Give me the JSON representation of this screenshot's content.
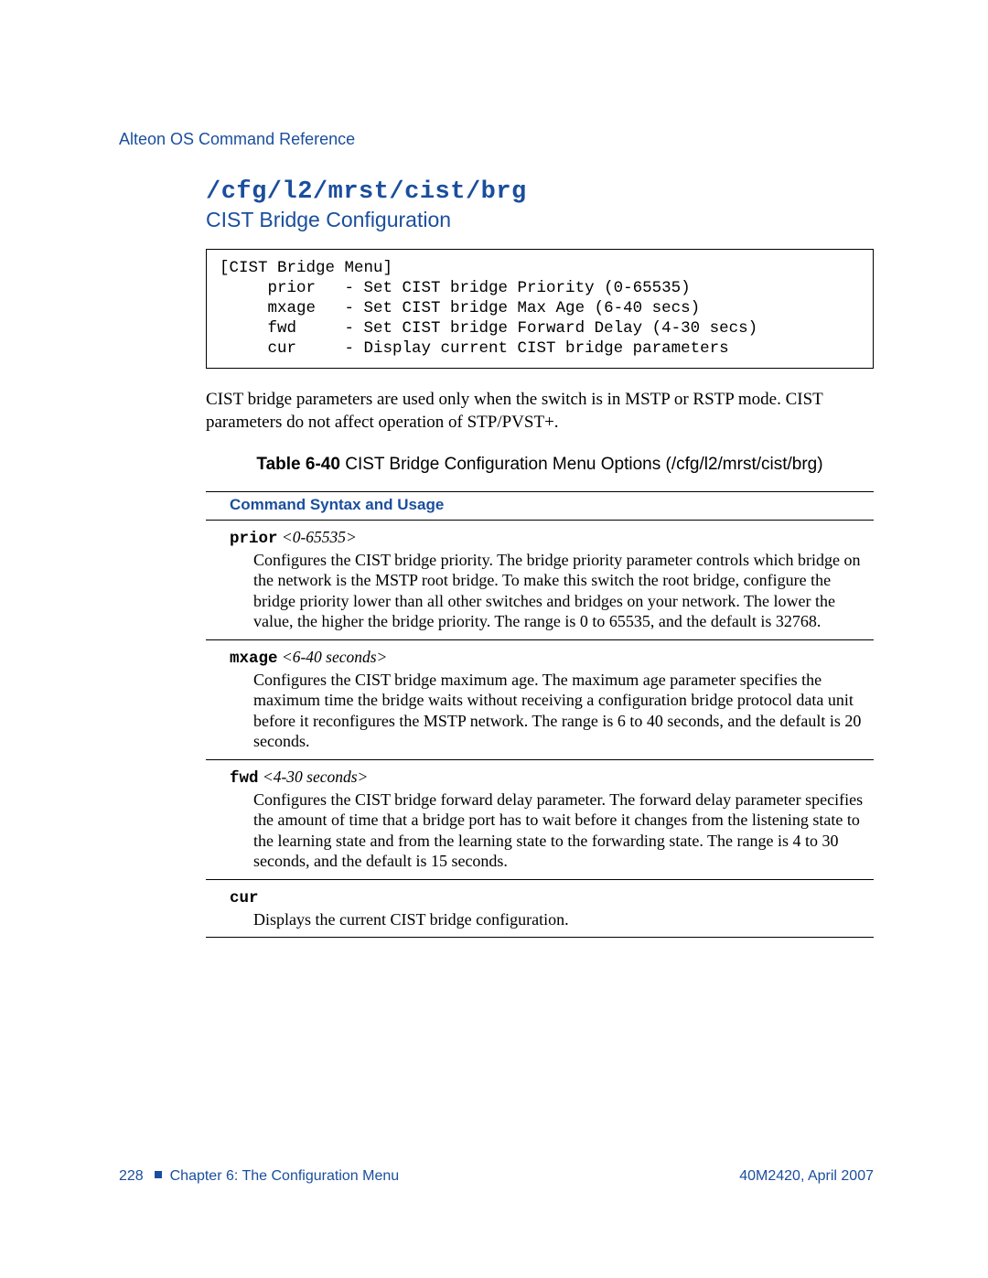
{
  "header": {
    "running_head": "Alteon OS Command Reference"
  },
  "title": {
    "path": "/cfg/l2/mrst/cist/brg",
    "subtitle": "CIST Bridge Configuration"
  },
  "menu_box": "[CIST Bridge Menu]\n     prior   - Set CIST bridge Priority (0-65535)\n     mxage   - Set CIST bridge Max Age (6-40 secs)\n     fwd     - Set CIST bridge Forward Delay (4-30 secs)\n     cur     - Display current CIST bridge parameters",
  "body_para": "CIST bridge parameters are used only when the switch is in MSTP or RSTP mode. CIST parameters do not affect operation of STP/PVST+.",
  "table": {
    "label": "Table 6-40",
    "title": "  CIST Bridge Configuration Menu Options (/cfg/l2/mrst/cist/brg)",
    "header": "Command Syntax and Usage",
    "rows": [
      {
        "cmd": "prior",
        "param": "<0-65535>",
        "desc": "Configures the CIST bridge priority. The bridge priority parameter controls which bridge on the network is the MSTP root bridge. To make this switch the root bridge, configure the bridge priority lower than all other switches and bridges on your network. The lower the value, the higher the bridge priority. The range is 0 to 65535, and the default is 32768."
      },
      {
        "cmd": "mxage",
        "param": "<6-40 seconds>",
        "desc": "Configures the CIST bridge maximum age. The maximum age parameter specifies the maximum time the bridge waits without receiving a configuration bridge protocol data unit before it reconfigures the MSTP network. The range is 6 to 40 seconds, and the default is 20 seconds."
      },
      {
        "cmd": "fwd",
        "param": "<4-30 seconds>",
        "desc": "Configures the CIST bridge forward delay parameter. The forward delay parameter specifies the amount of time that a bridge port has to wait before it changes from the listening state to the learning state and from the learning state to the forwarding state. The range is 4 to 30 seconds, and the default is 15 seconds."
      },
      {
        "cmd": "cur",
        "param": "",
        "desc": "Displays the current CIST bridge configuration."
      }
    ]
  },
  "footer": {
    "page_num": "228",
    "chapter": "Chapter 6: The Configuration Menu",
    "docref": "40M2420, April 2007"
  }
}
